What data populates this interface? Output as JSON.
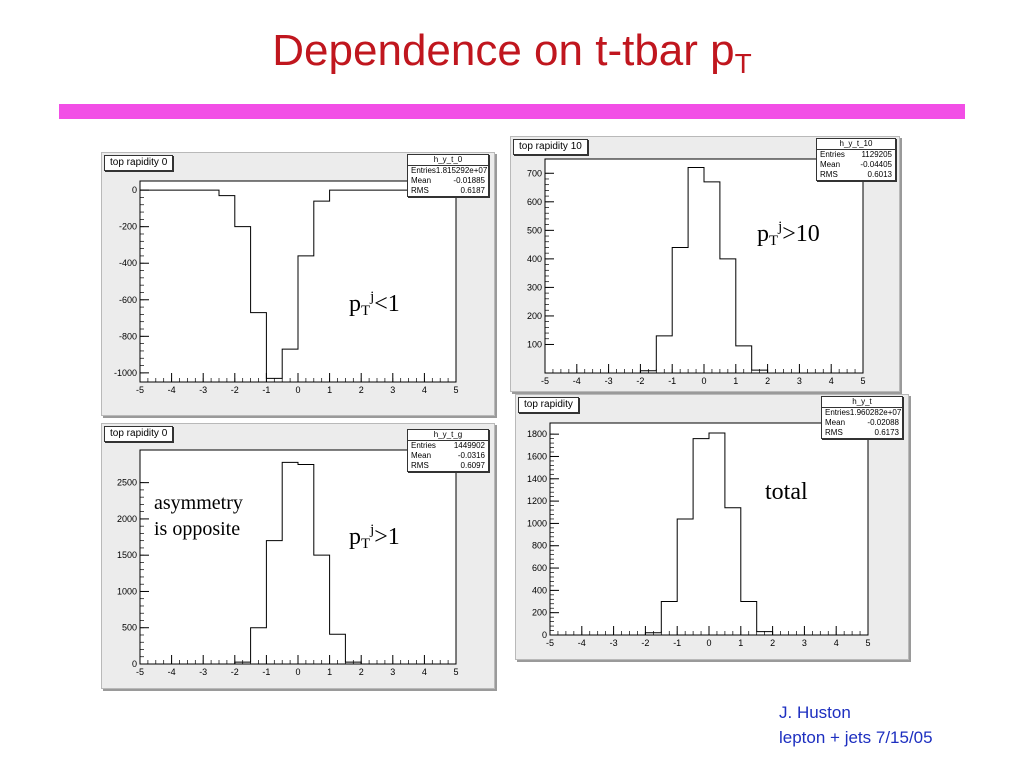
{
  "title": {
    "main": "Dependence on t-tbar p",
    "sub": "T"
  },
  "colors": {
    "title": "#c0161e",
    "rule": "#f24ee6",
    "footer": "#1d2fc0",
    "frame": "#ececec"
  },
  "footer": {
    "line1": "J. Huston",
    "line2": "lepton + jets 7/15/05"
  },
  "chart_data": [
    {
      "type": "histogram",
      "title": "top rapidity 0",
      "stats": {
        "name": "h_y_t_0",
        "rows": [
          [
            "Entries",
            "1.815292e+07"
          ],
          [
            "Mean",
            "-0.01885"
          ],
          [
            "RMS",
            "0.6187"
          ]
        ]
      },
      "annotation": {
        "text": "p",
        "sub": "T",
        "sup": "j",
        "rest": "<1"
      },
      "xlim": [
        -5,
        5
      ],
      "ylim": [
        -1050,
        50
      ],
      "xticks": [
        -5,
        -4,
        -3,
        -2,
        -1,
        0,
        1,
        2,
        3,
        4,
        5
      ],
      "yticks": [
        0,
        -200,
        -400,
        -600,
        -800,
        -1000
      ],
      "bin_edges": [
        -5.0,
        -2.5,
        -2.0,
        -1.5,
        -1.0,
        -0.5,
        0.0,
        0.5,
        1.0,
        1.5,
        2.0,
        2.5,
        5.0
      ],
      "values": [
        0,
        -30,
        -200,
        -670,
        -1030,
        -870,
        -360,
        -60,
        0,
        0,
        0,
        0
      ]
    },
    {
      "type": "histogram",
      "title": "top rapidity 10",
      "stats": {
        "name": "h_y_t_10",
        "rows": [
          [
            "Entries",
            "1129205"
          ],
          [
            "Mean",
            "-0.04405"
          ],
          [
            "RMS",
            "0.6013"
          ]
        ]
      },
      "annotation": {
        "text": "p",
        "sub": "T",
        "sup": "j",
        "rest": ">10"
      },
      "xlim": [
        -5,
        5
      ],
      "ylim": [
        0,
        750
      ],
      "xticks": [
        -5,
        -4,
        -3,
        -2,
        -1,
        0,
        1,
        2,
        3,
        4,
        5
      ],
      "yticks": [
        100,
        200,
        300,
        400,
        500,
        600,
        700
      ],
      "bin_edges": [
        -2.5,
        -2.0,
        -1.5,
        -1.0,
        -0.5,
        0.0,
        0.5,
        1.0,
        1.5,
        2.0,
        2.5
      ],
      "values": [
        0,
        8,
        130,
        440,
        720,
        670,
        400,
        95,
        10,
        0
      ]
    },
    {
      "type": "histogram",
      "title": "top rapidity 0",
      "stats": {
        "name": "h_y_t_g",
        "rows": [
          [
            "Entries",
            "1449902"
          ],
          [
            "Mean",
            "-0.0316"
          ],
          [
            "RMS",
            "0.6097"
          ]
        ]
      },
      "annotation": {
        "text": "p",
        "sub": "T",
        "sup": "j",
        "rest": ">1"
      },
      "extra_annotation": [
        "asymmetry",
        "is opposite"
      ],
      "xlim": [
        -5,
        5
      ],
      "ylim": [
        0,
        2950
      ],
      "xticks": [
        -5,
        -4,
        -3,
        -2,
        -1,
        0,
        1,
        2,
        3,
        4,
        5
      ],
      "yticks": [
        0,
        500,
        1000,
        1500,
        2000,
        2500
      ],
      "bin_edges": [
        -2.5,
        -2.0,
        -1.5,
        -1.0,
        -0.5,
        0.0,
        0.5,
        1.0,
        1.5,
        2.0,
        2.5
      ],
      "values": [
        0,
        25,
        500,
        1700,
        2780,
        2750,
        1500,
        410,
        25,
        0
      ]
    },
    {
      "type": "histogram",
      "title": "top rapidity",
      "stats": {
        "name": "h_y_t",
        "rows": [
          [
            "Entries",
            "1.960282e+07"
          ],
          [
            "Mean",
            "-0.02088"
          ],
          [
            "RMS",
            "0.6173"
          ]
        ]
      },
      "annotation": {
        "text": "total"
      },
      "xlim": [
        -5,
        5
      ],
      "ylim": [
        0,
        1900
      ],
      "xticks": [
        -5,
        -4,
        -3,
        -2,
        -1,
        0,
        1,
        2,
        3,
        4,
        5
      ],
      "yticks": [
        0,
        200,
        400,
        600,
        800,
        1000,
        1200,
        1400,
        1600,
        1800
      ],
      "bin_edges": [
        -2.5,
        -2.0,
        -1.5,
        -1.0,
        -0.5,
        0.0,
        0.5,
        1.0,
        1.5,
        2.0,
        2.5
      ],
      "values": [
        0,
        20,
        300,
        1040,
        1760,
        1810,
        1140,
        300,
        30,
        0
      ]
    }
  ]
}
